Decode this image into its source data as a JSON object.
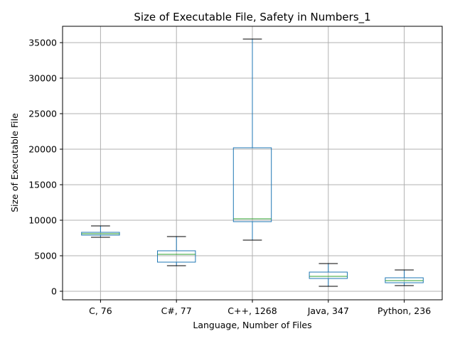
{
  "chart_data": {
    "type": "box",
    "title": "Size of Executable File, Safety in Numbers_1",
    "xlabel": "Language, Number of Files",
    "ylabel": "Size of Executable File",
    "categories": [
      "C, 76",
      "C#, 77",
      "C++, 1268",
      "Java, 347",
      "Python, 236"
    ],
    "boxes": [
      {
        "category": "C, 76",
        "whisker_low": 7600,
        "q1": 7900,
        "median": 8100,
        "q3": 8300,
        "whisker_high": 9200
      },
      {
        "category": "C#, 77",
        "whisker_low": 3600,
        "q1": 4100,
        "median": 5200,
        "q3": 5700,
        "whisker_high": 7700
      },
      {
        "category": "C++, 1268",
        "whisker_low": 7200,
        "q1": 9800,
        "median": 10200,
        "q3": 20200,
        "whisker_high": 35500
      },
      {
        "category": "Java, 347",
        "whisker_low": 700,
        "q1": 1800,
        "median": 2100,
        "q3": 2700,
        "whisker_high": 3900
      },
      {
        "category": "Python, 236",
        "whisker_low": 800,
        "q1": 1200,
        "median": 1500,
        "q3": 1900,
        "whisker_high": 3000
      }
    ],
    "yticks": [
      0,
      5000,
      10000,
      15000,
      20000,
      25000,
      30000,
      35000
    ],
    "ylim": [
      -1200,
      37300
    ],
    "grid": true,
    "colors": {
      "box": "#1f77b4",
      "median": "#2ca02c",
      "whisker_cap": "#000000",
      "grid": "#b0b0b0"
    }
  }
}
